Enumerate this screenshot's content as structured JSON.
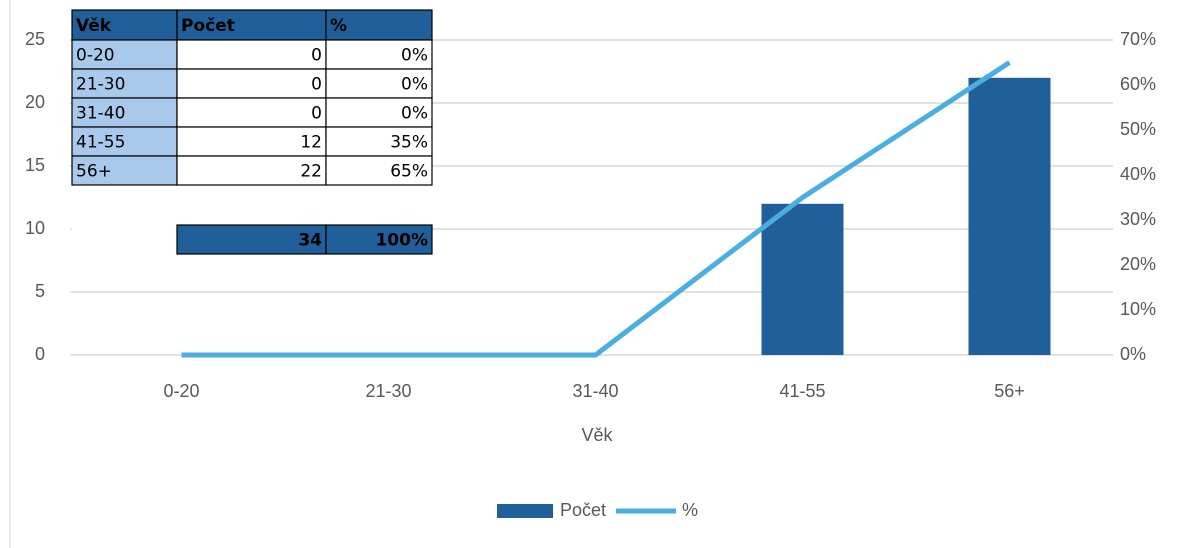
{
  "chart_data": {
    "type": "combo",
    "xlabel": "Věk",
    "categories": [
      "0-20",
      "21-30",
      "31-40",
      "41-55",
      "56+"
    ],
    "series": [
      {
        "name": "Počet",
        "type": "bar",
        "color": "#215f9a",
        "values": [
          0,
          0,
          0,
          12,
          22
        ]
      },
      {
        "name": "%",
        "type": "line",
        "axis": "y2",
        "color": "#4aaee0",
        "values": [
          0,
          0,
          0,
          35,
          65
        ]
      }
    ],
    "ylim": [
      0,
      25
    ],
    "yticks": [
      0,
      5,
      10,
      15,
      20,
      25
    ],
    "y2lim": [
      0,
      70
    ],
    "y2ticks": [
      {
        "value": 0,
        "label": "0%"
      },
      {
        "value": 10,
        "label": "10%"
      },
      {
        "value": 20,
        "label": "20%"
      },
      {
        "value": 30,
        "label": "30%"
      },
      {
        "value": 40,
        "label": "40%"
      },
      {
        "value": 50,
        "label": "50%"
      },
      {
        "value": 60,
        "label": "60%"
      },
      {
        "value": 70,
        "label": "70%"
      }
    ],
    "grid": true,
    "legend": "bottom"
  },
  "table": {
    "header": [
      "Věk",
      "Počet",
      "%"
    ],
    "rows": [
      [
        "0-20",
        "0",
        "0%"
      ],
      [
        "21-30",
        "0",
        "0%"
      ],
      [
        "31-40",
        "0",
        "0%"
      ],
      [
        "41-55",
        "12",
        "35%"
      ],
      [
        "56+",
        "22",
        "65%"
      ]
    ],
    "total": [
      "34",
      "100%"
    ]
  }
}
